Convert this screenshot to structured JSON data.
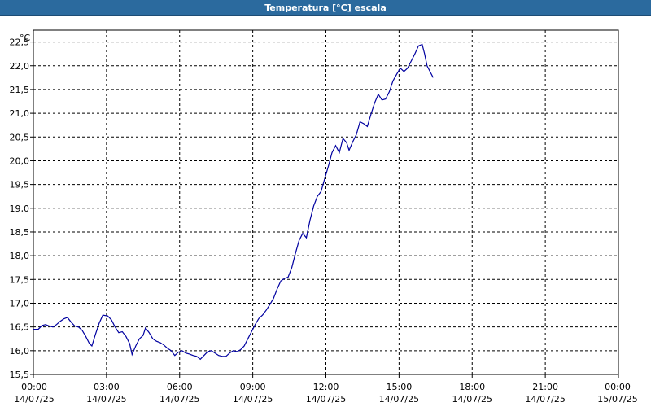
{
  "window": {
    "title": "Temperatura [°C] escala"
  },
  "colors": {
    "title_bar": "#2b6a9e",
    "line": "#0000a0",
    "grid": "#000000"
  },
  "chart_data": {
    "type": "line",
    "title": "Temperatura [°C] escala",
    "unit_label": "°C",
    "xlabel": "",
    "ylabel": "",
    "ylim": [
      15.5,
      22.75
    ],
    "yticks": [
      15.5,
      16.0,
      16.5,
      17.0,
      17.5,
      18.0,
      18.5,
      19.0,
      19.5,
      20.0,
      20.5,
      21.0,
      21.5,
      22.0,
      22.5
    ],
    "ytick_labels": [
      "15,5",
      "16,0",
      "16,5",
      "17,0",
      "17,5",
      "18,0",
      "18,5",
      "19,0",
      "19,5",
      "20,0",
      "20,5",
      "21,0",
      "21,5",
      "22,0",
      "22,5"
    ],
    "xlim_hours": [
      0,
      24
    ],
    "xticks": [
      {
        "hours": 0,
        "time": "00:00",
        "date": "14/07/25"
      },
      {
        "hours": 3,
        "time": "03:00",
        "date": "14/07/25"
      },
      {
        "hours": 6,
        "time": "06:00",
        "date": "14/07/25"
      },
      {
        "hours": 9,
        "time": "09:00",
        "date": "14/07/25"
      },
      {
        "hours": 12,
        "time": "12:00",
        "date": "14/07/25"
      },
      {
        "hours": 15,
        "time": "15:00",
        "date": "14/07/25"
      },
      {
        "hours": 18,
        "time": "18:00",
        "date": "14/07/25"
      },
      {
        "hours": 21,
        "time": "21:00",
        "date": "14/07/25"
      },
      {
        "hours": 24,
        "time": "00:00",
        "date": "15/07/25"
      }
    ],
    "grid": true,
    "series": [
      {
        "name": "",
        "points": [
          [
            0.0,
            16.45
          ],
          [
            0.2,
            16.45
          ],
          [
            0.35,
            16.53
          ],
          [
            0.5,
            16.55
          ],
          [
            0.65,
            16.52
          ],
          [
            0.8,
            16.5
          ],
          [
            0.95,
            16.55
          ],
          [
            1.1,
            16.62
          ],
          [
            1.25,
            16.67
          ],
          [
            1.4,
            16.7
          ],
          [
            1.55,
            16.6
          ],
          [
            1.7,
            16.52
          ],
          [
            1.85,
            16.5
          ],
          [
            2.0,
            16.43
          ],
          [
            2.15,
            16.3
          ],
          [
            2.3,
            16.15
          ],
          [
            2.4,
            16.1
          ],
          [
            2.55,
            16.35
          ],
          [
            2.7,
            16.58
          ],
          [
            2.85,
            16.75
          ],
          [
            3.05,
            16.73
          ],
          [
            3.2,
            16.65
          ],
          [
            3.35,
            16.5
          ],
          [
            3.5,
            16.38
          ],
          [
            3.65,
            16.4
          ],
          [
            3.8,
            16.3
          ],
          [
            3.95,
            16.15
          ],
          [
            4.05,
            15.92
          ],
          [
            4.2,
            16.1
          ],
          [
            4.35,
            16.25
          ],
          [
            4.5,
            16.32
          ],
          [
            4.6,
            16.48
          ],
          [
            4.75,
            16.38
          ],
          [
            4.9,
            16.25
          ],
          [
            5.05,
            16.2
          ],
          [
            5.2,
            16.17
          ],
          [
            5.35,
            16.12
          ],
          [
            5.5,
            16.05
          ],
          [
            5.65,
            16.0
          ],
          [
            5.8,
            15.9
          ],
          [
            5.95,
            15.97
          ],
          [
            6.1,
            16.0
          ],
          [
            6.25,
            15.95
          ],
          [
            6.4,
            15.93
          ],
          [
            6.55,
            15.9
          ],
          [
            6.7,
            15.88
          ],
          [
            6.85,
            15.82
          ],
          [
            7.0,
            15.9
          ],
          [
            7.15,
            15.98
          ],
          [
            7.3,
            16.0
          ],
          [
            7.45,
            15.95
          ],
          [
            7.6,
            15.9
          ],
          [
            7.75,
            15.88
          ],
          [
            7.9,
            15.88
          ],
          [
            8.05,
            15.95
          ],
          [
            8.2,
            16.0
          ],
          [
            8.35,
            15.98
          ],
          [
            8.5,
            16.02
          ],
          [
            8.65,
            16.1
          ],
          [
            8.8,
            16.25
          ],
          [
            8.95,
            16.4
          ],
          [
            9.1,
            16.55
          ],
          [
            9.25,
            16.68
          ],
          [
            9.4,
            16.75
          ],
          [
            9.55,
            16.85
          ],
          [
            9.7,
            16.97
          ],
          [
            9.85,
            17.1
          ],
          [
            10.0,
            17.3
          ],
          [
            10.15,
            17.47
          ],
          [
            10.3,
            17.52
          ],
          [
            10.45,
            17.55
          ],
          [
            10.6,
            17.75
          ],
          [
            10.75,
            18.05
          ],
          [
            10.9,
            18.32
          ],
          [
            11.05,
            18.47
          ],
          [
            11.2,
            18.38
          ],
          [
            11.35,
            18.75
          ],
          [
            11.5,
            19.05
          ],
          [
            11.65,
            19.25
          ],
          [
            11.8,
            19.35
          ],
          [
            11.95,
            19.62
          ],
          [
            12.1,
            19.88
          ],
          [
            12.25,
            20.17
          ],
          [
            12.4,
            20.32
          ],
          [
            12.55,
            20.17
          ],
          [
            12.7,
            20.47
          ],
          [
            12.85,
            20.38
          ],
          [
            12.95,
            20.22
          ],
          [
            13.1,
            20.4
          ],
          [
            13.25,
            20.55
          ],
          [
            13.4,
            20.82
          ],
          [
            13.55,
            20.78
          ],
          [
            13.7,
            20.72
          ],
          [
            13.85,
            20.98
          ],
          [
            14.0,
            21.22
          ],
          [
            14.15,
            21.4
          ],
          [
            14.3,
            21.28
          ],
          [
            14.45,
            21.3
          ],
          [
            14.6,
            21.45
          ],
          [
            14.75,
            21.68
          ],
          [
            14.9,
            21.82
          ],
          [
            15.05,
            21.95
          ],
          [
            15.2,
            21.88
          ],
          [
            15.35,
            21.95
          ],
          [
            15.5,
            22.1
          ],
          [
            15.65,
            22.25
          ],
          [
            15.8,
            22.42
          ],
          [
            15.95,
            22.45
          ],
          [
            16.05,
            22.25
          ],
          [
            16.15,
            22.0
          ],
          [
            16.3,
            21.85
          ],
          [
            16.4,
            21.75
          ]
        ]
      }
    ]
  }
}
